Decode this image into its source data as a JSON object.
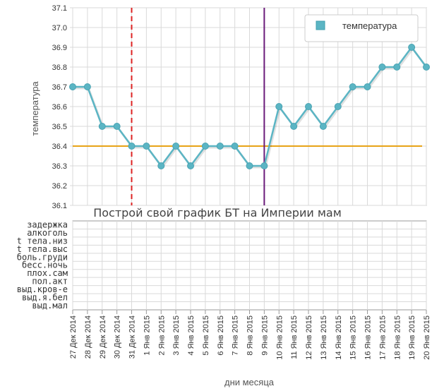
{
  "chart_data": {
    "type": "line",
    "title": "Построй свой график БТ на Империи мам",
    "xlabel": "дни месяца",
    "ylabel": "температура",
    "ylim": [
      36.1,
      37.1
    ],
    "y_ticks": [
      "37.1",
      "37.0",
      "36.9",
      "36.8",
      "36.7",
      "36.6",
      "36.5",
      "36.4",
      "36.3",
      "36.2",
      "36.1"
    ],
    "categories": [
      "27 Дек 2014",
      "28 Дек 2014",
      "29 Дек 2014",
      "30 Дек 2014",
      "31 Дек 2014",
      "1 Янв 2015",
      "2 Янв 2015",
      "3 Янв 2015",
      "4 Янв 2015",
      "5 Янв 2015",
      "6 Янв 2015",
      "7 Янв 2015",
      "8 Янв 2015",
      "9 Янв 2015",
      "10 Янв 2015",
      "11 Янв 2015",
      "12 Янв 2015",
      "13 Янв 2015",
      "14 Янв 2015",
      "15 Янв 2015",
      "16 Янв 2015",
      "17 Янв 2015",
      "18 Янв 2015",
      "19 Янв 2015",
      "20 Янв 2015"
    ],
    "series": [
      {
        "name": "температура",
        "values": [
          36.7,
          36.7,
          36.5,
          36.5,
          36.4,
          36.4,
          36.3,
          36.4,
          36.3,
          36.4,
          36.4,
          36.4,
          36.3,
          36.3,
          36.6,
          36.5,
          36.6,
          36.5,
          36.6,
          36.7,
          36.7,
          36.8,
          36.8,
          36.9,
          36.8
        ],
        "color": "#5bb5c4"
      }
    ],
    "cover_line": {
      "value": 36.4,
      "color": "#e8a317"
    },
    "markers": [
      {
        "category": "31 Дек 2014",
        "color": "#dd2222",
        "style": "dashed"
      },
      {
        "category": "9 Янв 2015",
        "color": "#6a1b7a",
        "style": "solid"
      }
    ],
    "symptom_rows": [
      "задержка",
      "алкоголь",
      "t тела.низ",
      "t тела.выс",
      "боль.груди",
      "бесс.ночь",
      "плох.сам",
      "пол.акт",
      "выд.кров-е",
      "выд.я.бел",
      "выд.мал"
    ],
    "legend": {
      "position": "top-right",
      "label": "температура"
    },
    "grid": true
  },
  "colors": {
    "grid": "#d9d9d9",
    "axis": "#999999",
    "series": "#5bb5c4"
  }
}
